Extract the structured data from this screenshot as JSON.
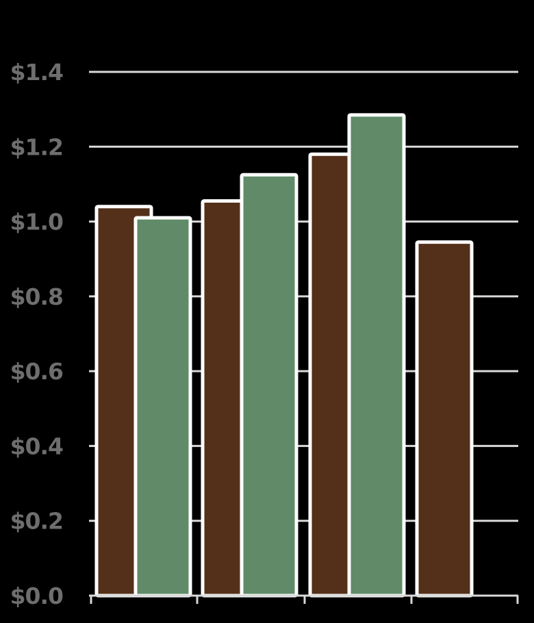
{
  "chart_data": {
    "type": "bar",
    "categories": [
      "",
      "",
      "",
      ""
    ],
    "series": [
      {
        "values": [
          1.04,
          1.055,
          1.18,
          0.945
        ]
      },
      {
        "values": [
          1.01,
          1.125,
          1.285,
          null
        ]
      }
    ],
    "ylim": [
      0,
      1.4
    ],
    "yticks": [
      0.0,
      0.2,
      0.4,
      0.6,
      0.8,
      1.0,
      1.2,
      1.4
    ],
    "ytick_labels": [
      "$0.0",
      "$0.2",
      "$0.4",
      "$0.6",
      "$0.8",
      "$1.0",
      "$1.2",
      "$1.4"
    ],
    "grid": true,
    "legend": "none",
    "colors": {
      "series": [
        "#54301a",
        "#618b68"
      ],
      "bar_outline": "#ffffff",
      "grid": "#d9d9d9",
      "tick_label": "#6e6e6e",
      "background": "#000000"
    }
  }
}
